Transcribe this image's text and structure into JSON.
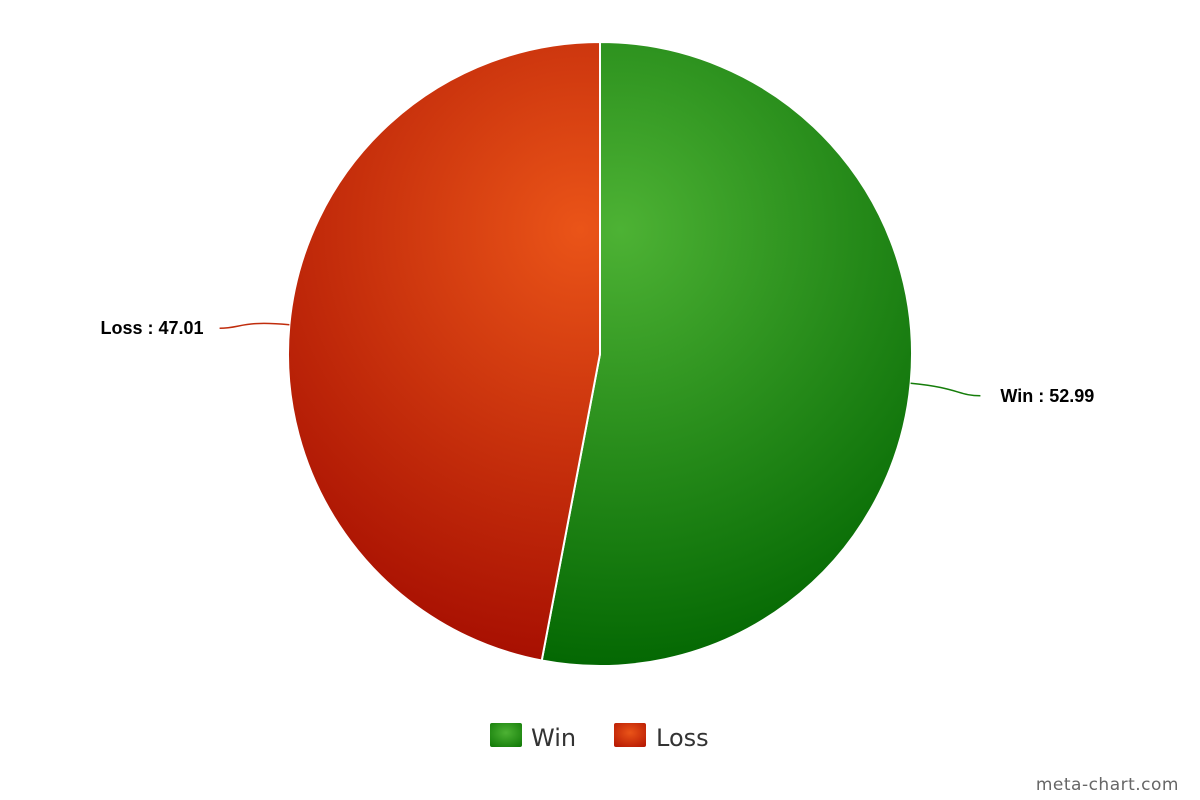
{
  "chart_data": {
    "type": "pie",
    "title": "",
    "categories": [
      "Win",
      "Loss"
    ],
    "values": [
      52.99,
      47.01
    ],
    "labels": [
      "Win : 52.99",
      "Loss : 47.01"
    ],
    "colors": [
      "#3a9a24",
      "#d43e14"
    ],
    "legend": {
      "placement": "bottom",
      "entries": [
        "Win",
        "Loss"
      ]
    }
  },
  "watermark": "meta-chart.com"
}
